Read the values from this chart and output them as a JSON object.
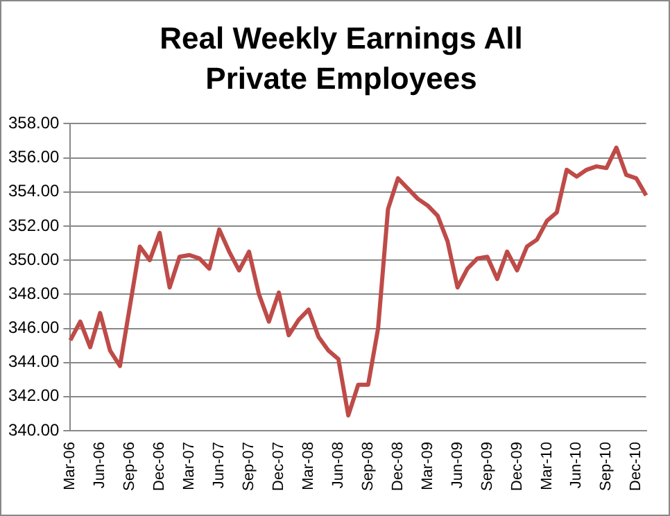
{
  "chart_data": {
    "type": "line",
    "title": "Real Weekly Earnings All Private Employees",
    "categories": [
      "Mar-06",
      null,
      null,
      "Jun-06",
      null,
      null,
      "Sep-06",
      null,
      null,
      "Dec-06",
      null,
      null,
      "Mar-07",
      null,
      null,
      "Jun-07",
      null,
      null,
      "Sep-07",
      null,
      null,
      "Dec-07",
      null,
      null,
      "Mar-08",
      null,
      null,
      "Jun-08",
      null,
      null,
      "Sep-08",
      null,
      null,
      "Dec-08",
      null,
      null,
      "Mar-09",
      null,
      null,
      "Jun-09",
      null,
      null,
      "Sep-09",
      null,
      null,
      "Dec-09",
      null,
      null,
      "Mar-10",
      null,
      null,
      "Jun-10",
      null,
      null,
      "Sep-10",
      null,
      null,
      "Dec-10",
      null
    ],
    "series": [
      {
        "color": "#be4b48",
        "values": [
          345.3,
          346.4,
          344.9,
          346.9,
          344.7,
          343.8,
          347.3,
          350.8,
          350.0,
          351.6,
          348.4,
          350.2,
          350.3,
          350.1,
          349.5,
          351.8,
          350.5,
          349.4,
          350.5,
          348.0,
          346.4,
          348.1,
          345.6,
          346.5,
          347.1,
          345.5,
          344.7,
          344.2,
          340.9,
          342.7,
          342.7,
          346.0,
          353.0,
          354.8,
          354.2,
          353.6,
          353.2,
          352.6,
          351.1,
          348.4,
          349.5,
          350.1,
          350.2,
          348.9,
          350.5,
          349.4,
          350.8,
          351.2,
          352.3,
          352.8,
          355.3,
          354.9,
          355.3,
          355.5,
          355.4,
          356.6,
          355.0,
          354.8,
          353.8
        ]
      }
    ],
    "ylim": [
      340,
      358
    ],
    "yticks": [
      {
        "value": 340,
        "label": "340.00"
      },
      {
        "value": 342,
        "label": "342.00"
      },
      {
        "value": 344,
        "label": "344.00"
      },
      {
        "value": 346,
        "label": "346.00"
      },
      {
        "value": 348,
        "label": "348.00"
      },
      {
        "value": 350,
        "label": "350.00"
      },
      {
        "value": 352,
        "label": "352.00"
      },
      {
        "value": 354,
        "label": "354.00"
      },
      {
        "value": 356,
        "label": "356.00"
      },
      {
        "value": 358,
        "label": "358.00"
      }
    ],
    "grid": "y",
    "legend": false,
    "marker": "none",
    "line_style": "solid"
  }
}
